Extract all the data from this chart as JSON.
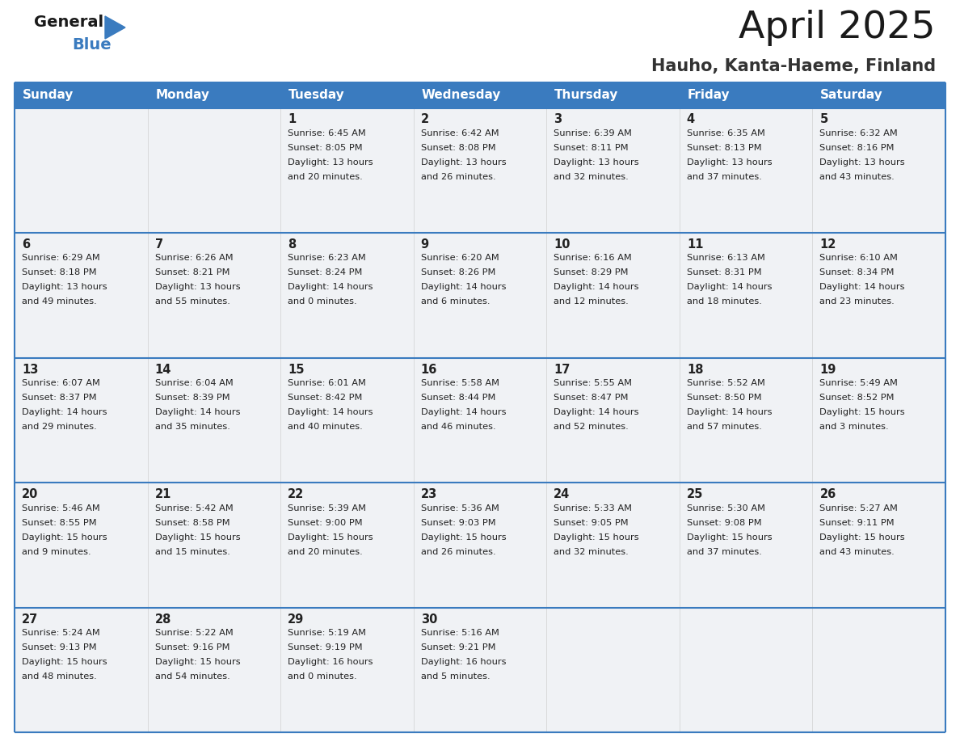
{
  "title": "April 2025",
  "subtitle": "Hauho, Kanta-Haeme, Finland",
  "header_color": "#3a7bbf",
  "header_text_color": "#ffffff",
  "cell_bg_even": "#f0f2f5",
  "cell_bg_odd": "#f0f2f5",
  "border_color": "#3a7bbf",
  "text_color": "#222222",
  "days_of_week": [
    "Sunday",
    "Monday",
    "Tuesday",
    "Wednesday",
    "Thursday",
    "Friday",
    "Saturday"
  ],
  "weeks": [
    [
      {
        "day": "",
        "sunrise": "",
        "sunset": "",
        "daylight": ""
      },
      {
        "day": "",
        "sunrise": "",
        "sunset": "",
        "daylight": ""
      },
      {
        "day": "1",
        "sunrise": "Sunrise: 6:45 AM",
        "sunset": "Sunset: 8:05 PM",
        "daylight": "Daylight: 13 hours\nand 20 minutes."
      },
      {
        "day": "2",
        "sunrise": "Sunrise: 6:42 AM",
        "sunset": "Sunset: 8:08 PM",
        "daylight": "Daylight: 13 hours\nand 26 minutes."
      },
      {
        "day": "3",
        "sunrise": "Sunrise: 6:39 AM",
        "sunset": "Sunset: 8:11 PM",
        "daylight": "Daylight: 13 hours\nand 32 minutes."
      },
      {
        "day": "4",
        "sunrise": "Sunrise: 6:35 AM",
        "sunset": "Sunset: 8:13 PM",
        "daylight": "Daylight: 13 hours\nand 37 minutes."
      },
      {
        "day": "5",
        "sunrise": "Sunrise: 6:32 AM",
        "sunset": "Sunset: 8:16 PM",
        "daylight": "Daylight: 13 hours\nand 43 minutes."
      }
    ],
    [
      {
        "day": "6",
        "sunrise": "Sunrise: 6:29 AM",
        "sunset": "Sunset: 8:18 PM",
        "daylight": "Daylight: 13 hours\nand 49 minutes."
      },
      {
        "day": "7",
        "sunrise": "Sunrise: 6:26 AM",
        "sunset": "Sunset: 8:21 PM",
        "daylight": "Daylight: 13 hours\nand 55 minutes."
      },
      {
        "day": "8",
        "sunrise": "Sunrise: 6:23 AM",
        "sunset": "Sunset: 8:24 PM",
        "daylight": "Daylight: 14 hours\nand 0 minutes."
      },
      {
        "day": "9",
        "sunrise": "Sunrise: 6:20 AM",
        "sunset": "Sunset: 8:26 PM",
        "daylight": "Daylight: 14 hours\nand 6 minutes."
      },
      {
        "day": "10",
        "sunrise": "Sunrise: 6:16 AM",
        "sunset": "Sunset: 8:29 PM",
        "daylight": "Daylight: 14 hours\nand 12 minutes."
      },
      {
        "day": "11",
        "sunrise": "Sunrise: 6:13 AM",
        "sunset": "Sunset: 8:31 PM",
        "daylight": "Daylight: 14 hours\nand 18 minutes."
      },
      {
        "day": "12",
        "sunrise": "Sunrise: 6:10 AM",
        "sunset": "Sunset: 8:34 PM",
        "daylight": "Daylight: 14 hours\nand 23 minutes."
      }
    ],
    [
      {
        "day": "13",
        "sunrise": "Sunrise: 6:07 AM",
        "sunset": "Sunset: 8:37 PM",
        "daylight": "Daylight: 14 hours\nand 29 minutes."
      },
      {
        "day": "14",
        "sunrise": "Sunrise: 6:04 AM",
        "sunset": "Sunset: 8:39 PM",
        "daylight": "Daylight: 14 hours\nand 35 minutes."
      },
      {
        "day": "15",
        "sunrise": "Sunrise: 6:01 AM",
        "sunset": "Sunset: 8:42 PM",
        "daylight": "Daylight: 14 hours\nand 40 minutes."
      },
      {
        "day": "16",
        "sunrise": "Sunrise: 5:58 AM",
        "sunset": "Sunset: 8:44 PM",
        "daylight": "Daylight: 14 hours\nand 46 minutes."
      },
      {
        "day": "17",
        "sunrise": "Sunrise: 5:55 AM",
        "sunset": "Sunset: 8:47 PM",
        "daylight": "Daylight: 14 hours\nand 52 minutes."
      },
      {
        "day": "18",
        "sunrise": "Sunrise: 5:52 AM",
        "sunset": "Sunset: 8:50 PM",
        "daylight": "Daylight: 14 hours\nand 57 minutes."
      },
      {
        "day": "19",
        "sunrise": "Sunrise: 5:49 AM",
        "sunset": "Sunset: 8:52 PM",
        "daylight": "Daylight: 15 hours\nand 3 minutes."
      }
    ],
    [
      {
        "day": "20",
        "sunrise": "Sunrise: 5:46 AM",
        "sunset": "Sunset: 8:55 PM",
        "daylight": "Daylight: 15 hours\nand 9 minutes."
      },
      {
        "day": "21",
        "sunrise": "Sunrise: 5:42 AM",
        "sunset": "Sunset: 8:58 PM",
        "daylight": "Daylight: 15 hours\nand 15 minutes."
      },
      {
        "day": "22",
        "sunrise": "Sunrise: 5:39 AM",
        "sunset": "Sunset: 9:00 PM",
        "daylight": "Daylight: 15 hours\nand 20 minutes."
      },
      {
        "day": "23",
        "sunrise": "Sunrise: 5:36 AM",
        "sunset": "Sunset: 9:03 PM",
        "daylight": "Daylight: 15 hours\nand 26 minutes."
      },
      {
        "day": "24",
        "sunrise": "Sunrise: 5:33 AM",
        "sunset": "Sunset: 9:05 PM",
        "daylight": "Daylight: 15 hours\nand 32 minutes."
      },
      {
        "day": "25",
        "sunrise": "Sunrise: 5:30 AM",
        "sunset": "Sunset: 9:08 PM",
        "daylight": "Daylight: 15 hours\nand 37 minutes."
      },
      {
        "day": "26",
        "sunrise": "Sunrise: 5:27 AM",
        "sunset": "Sunset: 9:11 PM",
        "daylight": "Daylight: 15 hours\nand 43 minutes."
      }
    ],
    [
      {
        "day": "27",
        "sunrise": "Sunrise: 5:24 AM",
        "sunset": "Sunset: 9:13 PM",
        "daylight": "Daylight: 15 hours\nand 48 minutes."
      },
      {
        "day": "28",
        "sunrise": "Sunrise: 5:22 AM",
        "sunset": "Sunset: 9:16 PM",
        "daylight": "Daylight: 15 hours\nand 54 minutes."
      },
      {
        "day": "29",
        "sunrise": "Sunrise: 5:19 AM",
        "sunset": "Sunset: 9:19 PM",
        "daylight": "Daylight: 16 hours\nand 0 minutes."
      },
      {
        "day": "30",
        "sunrise": "Sunrise: 5:16 AM",
        "sunset": "Sunset: 9:21 PM",
        "daylight": "Daylight: 16 hours\nand 5 minutes."
      },
      {
        "day": "",
        "sunrise": "",
        "sunset": "",
        "daylight": ""
      },
      {
        "day": "",
        "sunrise": "",
        "sunset": "",
        "daylight": ""
      },
      {
        "day": "",
        "sunrise": "",
        "sunset": "",
        "daylight": ""
      }
    ]
  ]
}
